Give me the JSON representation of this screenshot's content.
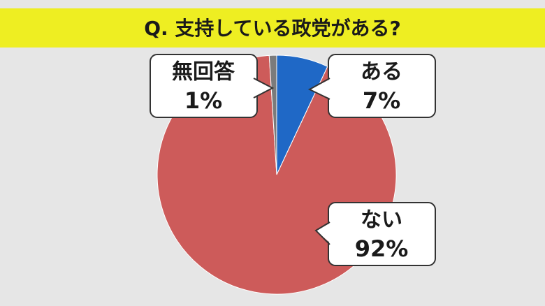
{
  "chart_data": {
    "type": "pie",
    "title": "Q. 支持している政党がある?",
    "categories": [
      "ある",
      "ない",
      "無回答"
    ],
    "values": [
      7,
      92,
      1
    ],
    "value_labels": [
      "7%",
      "92%",
      "1%"
    ],
    "colors": [
      "#1f68c6",
      "#cd5b5a",
      "#7b7b7b"
    ]
  }
}
